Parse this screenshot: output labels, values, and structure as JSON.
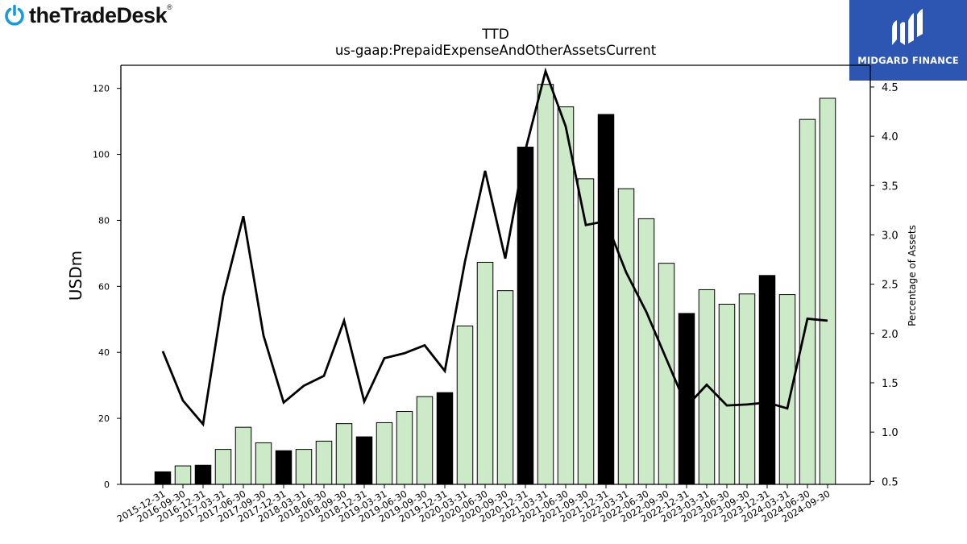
{
  "branding": {
    "company_logo_text": "theTradeDesk",
    "company_logo_mark": "®",
    "badge_text": "MIDGARD FINANCE"
  },
  "colors": {
    "bar_highlight": "#000000",
    "bar_default": "#cdeac8",
    "line": "#000000",
    "logo_blue": "#1a9ad6",
    "badge_bg": "#2d56b3"
  },
  "chart_data": {
    "type": "bar",
    "title": "TTD",
    "subtitle": "us-gaap:PrepaidExpenseAndOtherAssetsCurrent",
    "ylabel": "USDm",
    "y2label": "Percentage of Assets",
    "ylim": [
      0,
      127
    ],
    "y2lim": [
      0.47,
      4.72
    ],
    "yticks": [
      0,
      20,
      40,
      60,
      80,
      100,
      120
    ],
    "y2ticks": [
      0.5,
      1.0,
      1.5,
      2.0,
      2.5,
      3.0,
      3.5,
      4.0,
      4.5
    ],
    "categories": [
      "2015-12-31",
      "2016-09-30",
      "2016-12-31",
      "2017-03-31",
      "2017-06-30",
      "2017-09-30",
      "2017-12-31",
      "2018-03-31",
      "2018-06-30",
      "2018-09-30",
      "2018-12-31",
      "2019-03-31",
      "2019-06-30",
      "2019-09-30",
      "2019-12-31",
      "2020-03-31",
      "2020-06-30",
      "2020-09-30",
      "2020-12-31",
      "2021-03-31",
      "2021-06-30",
      "2021-09-30",
      "2021-12-31",
      "2022-03-31",
      "2022-06-30",
      "2022-09-30",
      "2022-12-31",
      "2023-03-31",
      "2023-06-30",
      "2023-09-30",
      "2023-12-31",
      "2024-03-31",
      "2024-06-30",
      "2024-09-30"
    ],
    "series": [
      {
        "kind": "bar",
        "axis": "left",
        "values": [
          3.8,
          5.6,
          5.8,
          10.6,
          17.3,
          12.6,
          10.2,
          10.6,
          13.1,
          18.4,
          14.4,
          18.7,
          22.1,
          26.6,
          27.8,
          48.0,
          67.3,
          58.7,
          102.2,
          121.2,
          114.4,
          92.6,
          112.1,
          89.6,
          80.5,
          67.0,
          51.8,
          59.0,
          54.6,
          57.7,
          63.3,
          57.5,
          110.6,
          117.0
        ]
      },
      {
        "kind": "line",
        "axis": "right",
        "values": [
          1.82,
          1.32,
          1.08,
          2.38,
          3.19,
          1.98,
          1.3,
          1.47,
          1.57,
          2.13,
          1.31,
          1.75,
          1.8,
          1.88,
          1.62,
          2.73,
          3.65,
          2.76,
          3.86,
          4.66,
          4.1,
          3.1,
          3.14,
          2.62,
          2.22,
          1.74,
          1.26,
          1.48,
          1.27,
          1.28,
          1.3,
          1.24,
          2.15,
          2.13
        ]
      }
    ],
    "highlight_categories": [
      "2015-12-31",
      "2016-12-31",
      "2017-12-31",
      "2018-12-31",
      "2019-12-31",
      "2020-12-31",
      "2021-12-31",
      "2022-12-31",
      "2023-12-31"
    ],
    "grid": false,
    "legend": "none"
  }
}
